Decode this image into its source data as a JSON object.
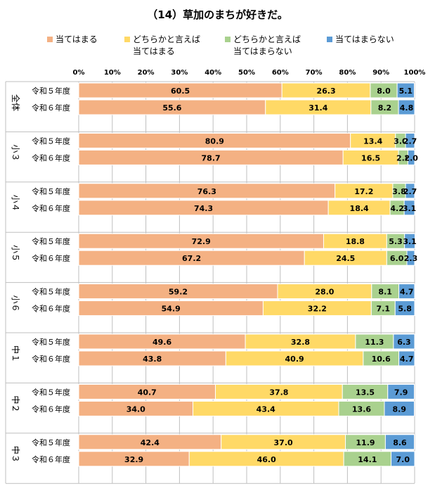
{
  "title": "（14）草加のまちが好きだ。",
  "legend": [
    {
      "line1": "当てはまる",
      "line2": "",
      "color": "#F4B183"
    },
    {
      "line1": "どちらかと言えば",
      "line2": "当てはまる",
      "color": "#FFD966"
    },
    {
      "line1": "どちらかと言えば",
      "line2": "当てはまらない",
      "color": "#A9D18E"
    },
    {
      "line1": "当てはまらない",
      "line2": "",
      "color": "#5B9BD5"
    }
  ],
  "chart_data": {
    "type": "bar",
    "orientation": "horizontal",
    "stacked": "percent",
    "xlim": [
      0,
      100
    ],
    "x_ticks": [
      "0%",
      "10%",
      "20%",
      "30%",
      "40%",
      "50%",
      "60%",
      "70%",
      "80%",
      "90%",
      "100%"
    ],
    "series_names": [
      "当てはまる",
      "どちらかと言えば当てはまる",
      "どちらかと言えば当てはまらない",
      "当てはまらない"
    ],
    "groups": [
      {
        "label": "全体",
        "rows": [
          {
            "label": "令和５年度",
            "values": [
              "60.5",
              "26.3",
              "8.0",
              "5.1"
            ]
          },
          {
            "label": "令和６年度",
            "values": [
              "55.6",
              "31.4",
              "8.2",
              "4.8"
            ]
          }
        ]
      },
      {
        "label": "小３",
        "rows": [
          {
            "label": "令和５年度",
            "values": [
              "80.9",
              "13.4",
              "3.0",
              "2.7"
            ]
          },
          {
            "label": "令和６年度",
            "values": [
              "78.7",
              "16.5",
              "2.8",
              "2.0"
            ]
          }
        ]
      },
      {
        "label": "小４",
        "rows": [
          {
            "label": "令和５年度",
            "values": [
              "76.3",
              "17.2",
              "3.8",
              "2.7"
            ]
          },
          {
            "label": "令和６年度",
            "values": [
              "74.3",
              "18.4",
              "4.2",
              "3.1"
            ]
          }
        ]
      },
      {
        "label": "小５",
        "rows": [
          {
            "label": "令和５年度",
            "values": [
              "72.9",
              "18.8",
              "5.3",
              "3.1"
            ]
          },
          {
            "label": "令和６年度",
            "values": [
              "67.2",
              "24.5",
              "6.0",
              "2.3"
            ]
          }
        ]
      },
      {
        "label": "小６",
        "rows": [
          {
            "label": "令和５年度",
            "values": [
              "59.2",
              "28.0",
              "8.1",
              "4.7"
            ]
          },
          {
            "label": "令和６年度",
            "values": [
              "54.9",
              "32.2",
              "7.1",
              "5.8"
            ]
          }
        ]
      },
      {
        "label": "中１",
        "rows": [
          {
            "label": "令和５年度",
            "values": [
              "49.6",
              "32.8",
              "11.3",
              "6.3"
            ]
          },
          {
            "label": "令和６年度",
            "values": [
              "43.8",
              "40.9",
              "10.6",
              "4.7"
            ]
          }
        ]
      },
      {
        "label": "中２",
        "rows": [
          {
            "label": "令和５年度",
            "values": [
              "40.7",
              "37.8",
              "13.5",
              "7.9"
            ]
          },
          {
            "label": "令和６年度",
            "values": [
              "34.0",
              "43.4",
              "13.6",
              "8.9"
            ]
          }
        ]
      },
      {
        "label": "中３",
        "rows": [
          {
            "label": "令和５年度",
            "values": [
              "42.4",
              "37.0",
              "11.9",
              "8.6"
            ]
          },
          {
            "label": "令和６年度",
            "values": [
              "32.9",
              "46.0",
              "14.1",
              "7.0"
            ]
          }
        ]
      }
    ],
    "colors": [
      "#F4B183",
      "#FFD966",
      "#A9D18E",
      "#5B9BD5"
    ]
  }
}
